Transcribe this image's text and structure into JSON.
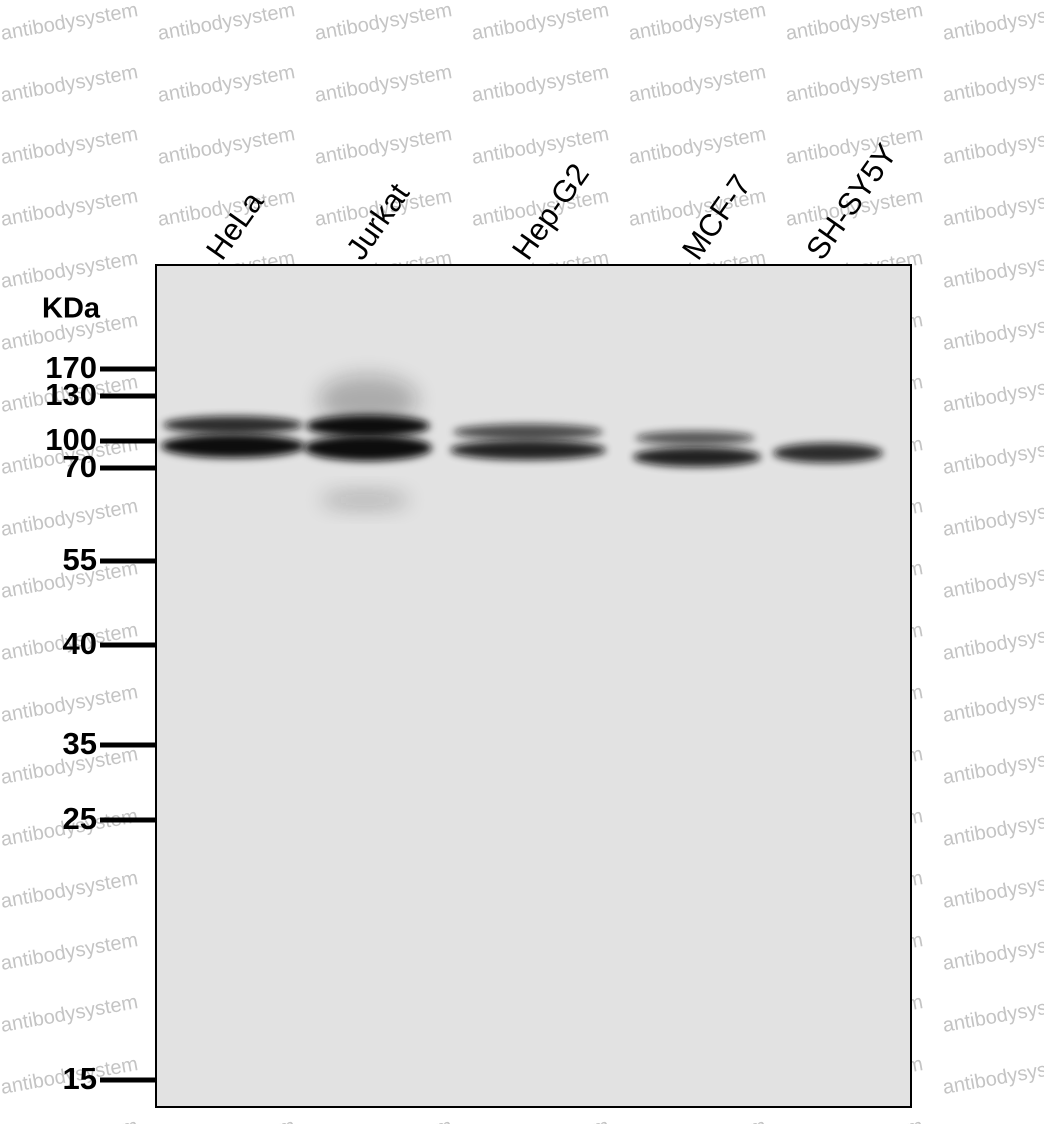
{
  "unit_label": "KDa",
  "lanes": [
    "HeLa",
    "Jurkat",
    "Hep-G2",
    "MCF-7",
    "SH-SY5Y"
  ],
  "markers": [
    170,
    130,
    100,
    70,
    55,
    40,
    35,
    25,
    15
  ],
  "watermark": "antibodysystem"
}
